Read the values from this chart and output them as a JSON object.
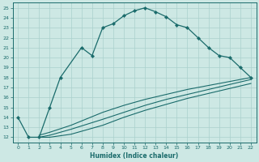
{
  "xlabel": "Humidex (Indice chaleur)",
  "xlim": [
    -0.5,
    22.5
  ],
  "ylim": [
    11.5,
    25.5
  ],
  "yticks": [
    12,
    13,
    14,
    15,
    16,
    17,
    18,
    19,
    20,
    21,
    22,
    23,
    24,
    25
  ],
  "xticks": [
    0,
    1,
    2,
    3,
    4,
    5,
    6,
    7,
    8,
    9,
    10,
    11,
    12,
    13,
    14,
    15,
    16,
    17,
    18,
    19,
    20,
    21,
    22
  ],
  "bg_color": "#cde8e4",
  "line_color": "#1a6b6b",
  "grid_color": "#aad0cc",
  "line1_x": [
    0,
    1,
    2,
    3,
    4,
    6,
    7,
    8,
    9,
    10,
    11,
    12,
    13,
    14,
    15,
    16,
    17,
    18,
    19,
    20,
    21,
    22
  ],
  "line1_y": [
    14.0,
    12.0,
    12.0,
    15.0,
    18.0,
    21.0,
    20.2,
    23.0,
    23.4,
    24.2,
    24.7,
    25.0,
    24.6,
    24.1,
    23.3,
    23.0,
    22.0,
    21.0,
    20.2,
    20.0,
    19.0,
    18.0
  ],
  "line2_x": [
    2,
    3,
    5,
    8,
    10,
    12,
    14,
    16,
    18,
    20,
    22
  ],
  "line2_y": [
    12.2,
    12.5,
    13.2,
    14.5,
    15.2,
    15.8,
    16.3,
    16.8,
    17.2,
    17.6,
    18.0
  ],
  "line3_x": [
    2,
    3,
    5,
    8,
    10,
    12,
    14,
    16,
    18,
    20,
    22
  ],
  "line3_y": [
    12.0,
    12.2,
    12.8,
    13.8,
    14.5,
    15.2,
    15.8,
    16.3,
    16.8,
    17.3,
    17.8
  ],
  "line4_x": [
    2,
    3,
    5,
    8,
    10,
    12,
    14,
    16,
    18,
    20,
    22
  ],
  "line4_y": [
    12.0,
    12.0,
    12.3,
    13.2,
    14.0,
    14.7,
    15.3,
    15.9,
    16.4,
    16.9,
    17.4
  ]
}
